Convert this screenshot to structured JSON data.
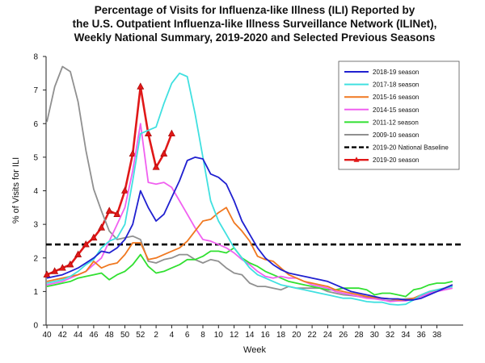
{
  "chart_data": {
    "type": "line",
    "title_lines": [
      "Percentage of Visits for Influenza-like Illness (ILI) Reported by",
      "the U.S. Outpatient Influenza-like Illness Surveillance Network (ILINet),",
      "Weekly National Summary, 2019-2020 and Selected Previous Seasons"
    ],
    "xlabel": "Week",
    "ylabel": "% of Visits for ILI",
    "ylim": [
      0,
      8
    ],
    "y_ticks": [
      "0",
      "1",
      "2",
      "3",
      "4",
      "5",
      "6",
      "7",
      "8"
    ],
    "x_ticks": [
      "40",
      "42",
      "44",
      "46",
      "48",
      "50",
      "52",
      "2",
      "4",
      "6",
      "8",
      "10",
      "12",
      "14",
      "16",
      "18",
      "20",
      "22",
      "24",
      "26",
      "28",
      "30",
      "32",
      "34",
      "36",
      "38"
    ],
    "x_index_note": "x values are week positions: 0 = week 40, 12 = week 52, 13 = week 1, 52 = week 39",
    "grid": false,
    "legend_position": "top-right",
    "baseline": {
      "name": "2019-20 National Baseline",
      "value": 2.4,
      "color": "#000000"
    },
    "series": [
      {
        "name": "2018-19 season",
        "color": "#2020d0",
        "values": [
          1.4,
          1.45,
          1.5,
          1.6,
          1.7,
          1.85,
          2.0,
          2.2,
          2.15,
          2.3,
          2.55,
          3.0,
          4.0,
          3.5,
          3.1,
          3.3,
          3.8,
          4.3,
          4.9,
          5.0,
          4.95,
          4.5,
          4.4,
          4.2,
          3.7,
          3.1,
          2.7,
          2.3,
          2.0,
          1.8,
          1.65,
          1.55,
          1.5,
          1.45,
          1.4,
          1.35,
          1.3,
          1.2,
          1.1,
          1.0,
          0.95,
          0.9,
          0.85,
          0.8,
          0.78,
          0.78,
          0.75,
          0.75,
          0.8,
          0.9,
          1.0,
          1.1,
          1.2
        ]
      },
      {
        "name": "2017-18 season",
        "color": "#40e0e0",
        "values": [
          1.25,
          1.3,
          1.35,
          1.45,
          1.6,
          1.8,
          1.95,
          2.3,
          2.5,
          2.6,
          3.0,
          4.3,
          5.7,
          5.8,
          5.9,
          6.6,
          7.2,
          7.5,
          7.4,
          6.3,
          5.0,
          3.7,
          3.1,
          2.7,
          2.3,
          2.0,
          1.7,
          1.5,
          1.4,
          1.3,
          1.2,
          1.15,
          1.1,
          1.05,
          1.0,
          0.95,
          0.9,
          0.85,
          0.8,
          0.8,
          0.75,
          0.7,
          0.68,
          0.68,
          0.62,
          0.6,
          0.62,
          0.75,
          0.9,
          1.0,
          1.05,
          1.1,
          1.15
        ]
      },
      {
        "name": "2015-16 season",
        "color": "#f07820",
        "values": [
          1.3,
          1.35,
          1.4,
          1.45,
          1.5,
          1.6,
          1.9,
          1.7,
          1.8,
          1.85,
          2.1,
          2.45,
          2.45,
          1.95,
          2.0,
          2.1,
          2.2,
          2.3,
          2.5,
          2.8,
          3.1,
          3.15,
          3.35,
          3.5,
          3.05,
          2.8,
          2.5,
          2.05,
          1.95,
          1.9,
          1.7,
          1.5,
          1.4,
          1.3,
          1.25,
          1.2,
          1.15,
          1.05,
          1.0,
          0.95,
          0.9,
          0.85,
          0.82,
          0.8,
          0.78,
          0.75,
          0.75,
          0.8,
          0.9,
          1.0,
          1.05,
          1.1,
          1.2
        ]
      },
      {
        "name": "2014-15 season",
        "color": "#f060f0",
        "values": [
          1.2,
          1.25,
          1.3,
          1.4,
          1.5,
          1.6,
          1.8,
          2.0,
          2.5,
          3.0,
          3.5,
          4.6,
          6.0,
          4.25,
          4.2,
          4.25,
          4.1,
          3.7,
          3.3,
          2.9,
          2.55,
          2.5,
          2.4,
          2.3,
          2.15,
          1.95,
          1.8,
          1.6,
          1.45,
          1.4,
          1.45,
          1.4,
          1.4,
          1.3,
          1.2,
          1.15,
          1.1,
          1.0,
          0.95,
          0.9,
          0.85,
          0.8,
          0.78,
          0.75,
          0.7,
          0.72,
          0.72,
          0.78,
          0.85,
          0.95,
          1.0,
          1.05,
          1.1
        ]
      },
      {
        "name": "2011-12 season",
        "color": "#30e030",
        "values": [
          1.15,
          1.2,
          1.25,
          1.3,
          1.4,
          1.45,
          1.5,
          1.55,
          1.35,
          1.5,
          1.6,
          1.8,
          2.1,
          1.75,
          1.55,
          1.6,
          1.7,
          1.8,
          1.95,
          1.95,
          2.05,
          2.2,
          2.2,
          2.15,
          2.3,
          2.0,
          1.85,
          1.75,
          1.6,
          1.5,
          1.4,
          1.3,
          1.25,
          1.2,
          1.15,
          1.1,
          1.05,
          1.05,
          1.1,
          1.1,
          1.1,
          1.05,
          0.9,
          0.95,
          0.95,
          0.9,
          0.85,
          1.05,
          1.1,
          1.2,
          1.25,
          1.25,
          1.3
        ]
      },
      {
        "name": "2009-10 season",
        "color": "#909090",
        "values": [
          6.05,
          7.1,
          7.7,
          7.55,
          6.65,
          5.2,
          4.05,
          3.4,
          2.8,
          2.55,
          2.6,
          2.65,
          2.55,
          1.9,
          1.85,
          1.95,
          2.0,
          2.1,
          2.1,
          1.95,
          1.85,
          1.95,
          1.9,
          1.7,
          1.55,
          1.5,
          1.25,
          1.15,
          1.15,
          1.1,
          1.05,
          1.15,
          1.1,
          1.1,
          1.1,
          1.1,
          1.0,
          0.95,
          0.9,
          0.88,
          0.85,
          0.82,
          0.8,
          0.75,
          0.72,
          0.75,
          0.78,
          0.8,
          0.85,
          0.95,
          1.05,
          1.1,
          1.15
        ]
      },
      {
        "name": "2019-20 season",
        "color": "#e01818",
        "values": [
          1.5,
          1.6,
          1.7,
          1.8,
          2.1,
          2.4,
          2.6,
          2.9,
          3.4,
          3.3,
          4.0,
          5.1,
          7.1,
          5.7,
          4.7,
          5.1,
          5.7
        ]
      }
    ]
  }
}
